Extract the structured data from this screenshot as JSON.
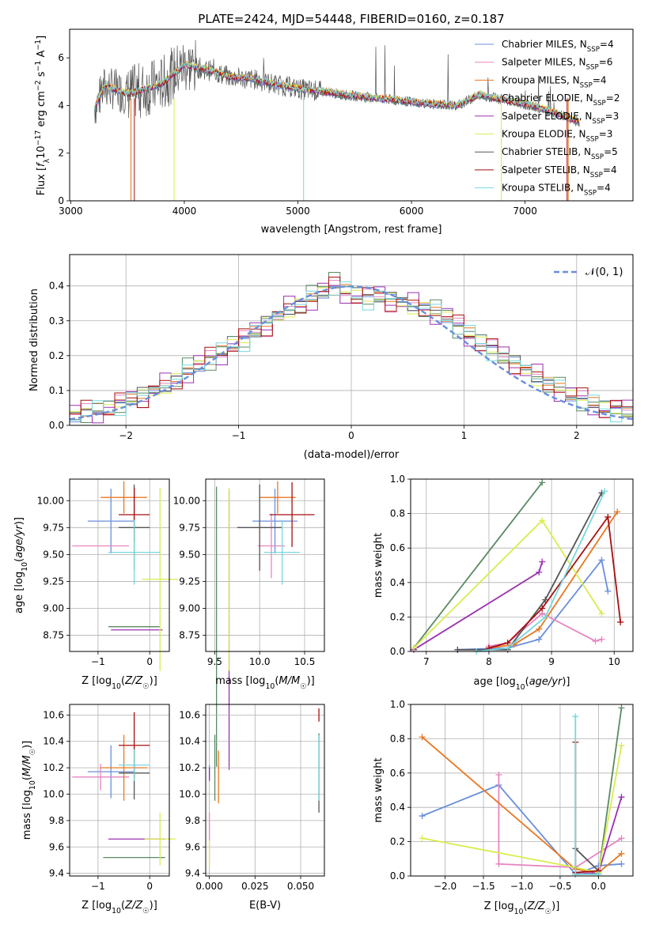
{
  "figure": {
    "title": "PLATE=2424, MJD=54448, FIBERID=0160, z=0.187"
  },
  "colors": [
    "#6a8fdc",
    "#e884c1",
    "#e87722",
    "#5a8a63",
    "#9b30b0",
    "#d9ec4c",
    "#555555",
    "#a80f0f",
    "#77d8dd"
  ],
  "chart_data": [
    {
      "name": "spectrum",
      "type": "line",
      "title": "PLATE=2424, MJD=54448, FIBERID=0160, z=0.187",
      "xlabel": "wavelength [Angstrom, rest frame]",
      "ylabel": "Flux [f_λ 10^-17 erg cm^-2 s^-1 A^-1]",
      "xlim": [
        2990,
        7950
      ],
      "ylim": [
        0,
        7.2
      ],
      "xticks": [
        "3000",
        "4000",
        "5000",
        "6000",
        "7000"
      ],
      "yticks": [
        "0",
        "2",
        "4",
        "6"
      ],
      "grid": false,
      "legend_position": "top-right",
      "data_x_range": [
        3210,
        7480
      ],
      "continuum": {
        "x": [
          3210,
          3300,
          3500,
          3600,
          3800,
          4000,
          4200,
          4400,
          4600,
          4800,
          5000,
          5200,
          5400,
          5600,
          5800,
          6000,
          6200,
          6400,
          6600,
          6800,
          7000,
          7200,
          7480
        ],
        "y": [
          3.9,
          4.8,
          4.5,
          4.6,
          4.9,
          5.7,
          5.5,
          5.2,
          5.1,
          4.9,
          4.7,
          4.6,
          4.45,
          4.35,
          4.25,
          4.15,
          4.05,
          4.0,
          4.45,
          4.25,
          4.05,
          3.8,
          3.3
        ]
      },
      "series": [
        {
          "name": "Chabrier MILES, N_SSP=4",
          "sup": "",
          "sub": "SSP",
          "label": "Chabrier MILES, N",
          "tail": "=4"
        },
        {
          "name": "Salpeter MILES, N_SSP=6",
          "label": "Salpeter MILES, N",
          "tail": "=6"
        },
        {
          "name": "Kroupa MILES, N_SSP=4",
          "label": "Kroupa MILES, N",
          "tail": "=4"
        },
        {
          "name": "Chabrier ELODIE, N_SSP=2",
          "label": "Chabrier ELODIE, N",
          "tail": "=2"
        },
        {
          "name": "Salpeter ELODIE, N_SSP=3",
          "label": "Salpeter ELODIE, N",
          "tail": "=3"
        },
        {
          "name": "Kroupa ELODIE, N_SSP=3",
          "label": "Kroupa ELODIE, N",
          "tail": "=3"
        },
        {
          "name": "Chabrier STELIB, N_SSP=5",
          "label": "Chabrier STELIB, N",
          "tail": "=5"
        },
        {
          "name": "Salpeter STELIB, N_SSP=4",
          "label": "Salpeter STELIB, N",
          "tail": "=4"
        },
        {
          "name": "Kroupa STELIB, N_SSP=4",
          "label": "Kroupa STELIB, N",
          "tail": "=4"
        }
      ]
    },
    {
      "name": "residual-histogram",
      "type": "histogram",
      "xlabel": "(data-model)/error",
      "ylabel": "Normed distribution",
      "xlim": [
        -2.5,
        2.5
      ],
      "ylim": [
        0,
        0.49
      ],
      "xticks": [
        "−2",
        "−1",
        "0",
        "1",
        "2"
      ],
      "yticks": [
        "0.0",
        "0.1",
        "0.2",
        "0.3",
        "0.4"
      ],
      "grid": true,
      "legend_position": "top-right",
      "legend_label": "𝒩(0, 1)",
      "bin_width": 0.1,
      "bin_start": -2.5,
      "base_values": [
        0.03,
        0.04,
        0.045,
        0.05,
        0.06,
        0.075,
        0.085,
        0.1,
        0.115,
        0.13,
        0.155,
        0.175,
        0.19,
        0.21,
        0.235,
        0.245,
        0.27,
        0.29,
        0.315,
        0.335,
        0.345,
        0.365,
        0.385,
        0.39,
        0.385,
        0.375,
        0.365,
        0.37,
        0.36,
        0.355,
        0.345,
        0.335,
        0.325,
        0.315,
        0.28,
        0.26,
        0.24,
        0.22,
        0.195,
        0.18,
        0.16,
        0.14,
        0.12,
        0.105,
        0.09,
        0.07,
        0.06,
        0.05,
        0.045,
        0.04
      ],
      "peak_values": [
        0.03,
        0.04,
        0.045,
        0.05,
        0.06,
        0.075,
        0.085,
        0.1,
        0.115,
        0.13,
        0.155,
        0.175,
        0.19,
        0.21,
        0.235,
        0.245,
        0.27,
        0.29,
        0.315,
        0.335,
        0.345,
        0.365,
        0.385,
        0.47,
        0.385,
        0.375,
        0.365,
        0.37,
        0.36,
        0.355,
        0.345,
        0.335,
        0.325,
        0.315,
        0.28,
        0.26,
        0.24,
        0.22,
        0.195,
        0.18,
        0.16,
        0.14,
        0.12,
        0.105,
        0.09,
        0.07,
        0.06,
        0.05,
        0.045,
        0.04
      ]
    },
    {
      "name": "age-vs-Z",
      "type": "errorbar",
      "xlabel": "Z [log10(Z/Z☉)]",
      "ylabel": "age [log10(age/yr)]",
      "xlim": [
        -1.55,
        0.38
      ],
      "ylim": [
        8.6,
        10.2
      ],
      "xticks": [
        "−1",
        "0"
      ],
      "yticks": [
        "8.75",
        "9.00",
        "9.25",
        "9.50",
        "9.75",
        "10.00"
      ],
      "grid": true,
      "points": [
        {
          "x": -0.75,
          "xerr": 0.45,
          "y": 9.81,
          "yerr": 0.3
        },
        {
          "x": -0.95,
          "xerr": 0.55,
          "y": 9.58,
          "yerr": 0.0
        },
        {
          "x": -0.5,
          "xerr": 0.45,
          "y": 10.03,
          "yerr": 0.15
        },
        {
          "x": -0.3,
          "xerr": 0.5,
          "y": 8.83,
          "yerr": 0.0
        },
        {
          "x": -0.25,
          "xerr": 0.5,
          "y": 8.8,
          "yerr": 0.0
        },
        {
          "x": 0.2,
          "xerr": 0.35,
          "y": 9.27,
          "yerr": 0.85
        },
        {
          "x": -0.3,
          "xerr": 0.3,
          "y": 9.75,
          "yerr": 0.4
        },
        {
          "x": -0.3,
          "xerr": 0.3,
          "y": 9.87,
          "yerr": 0.25
        },
        {
          "x": -0.3,
          "xerr": 0.5,
          "y": 9.52,
          "yerr": 0.3
        }
      ]
    },
    {
      "name": "age-vs-mass",
      "type": "errorbar",
      "xlabel": "mass [log10(M/M☉)]",
      "ylabel": "",
      "xlim": [
        9.4,
        10.72
      ],
      "ylim": [
        8.6,
        10.2
      ],
      "xticks": [
        "9.5",
        "10.0",
        "10.5"
      ],
      "yticks": [
        "8.75",
        "9.00",
        "9.25",
        "9.50",
        "9.75",
        "10.00"
      ],
      "grid": true,
      "points": [
        {
          "x": 10.17,
          "xerr": 0.25,
          "y": 9.81,
          "yerr": 0.3
        },
        {
          "x": 10.13,
          "xerr": 0.15,
          "y": 9.58,
          "yerr": 0.3
        },
        {
          "x": 10.2,
          "xerr": 0.2,
          "y": 10.03,
          "yerr": 0.15
        },
        {
          "x": 9.52,
          "xerr": 0.0,
          "y": 8.83,
          "yerr": 1.3
        },
        {
          "x": 9.66,
          "xerr": 0.0,
          "y": 8.8,
          "yerr": 1.3
        },
        {
          "x": 9.66,
          "xerr": 0.0,
          "y": 9.27,
          "yerr": 0.85
        },
        {
          "x": 10.0,
          "xerr": 0.25,
          "y": 9.75,
          "yerr": 0.4
        },
        {
          "x": 10.36,
          "xerr": 0.25,
          "y": 9.87,
          "yerr": 0.3
        },
        {
          "x": 10.25,
          "xerr": 0.2,
          "y": 9.52,
          "yerr": 0.3
        }
      ]
    },
    {
      "name": "mass-weight-vs-age",
      "type": "line",
      "xlabel": "age [log10(age/yr)]",
      "ylabel": "mass weight",
      "xlim": [
        6.75,
        10.3
      ],
      "ylim": [
        0,
        1.0
      ],
      "xticks": [
        "7",
        "8",
        "9",
        "10"
      ],
      "yticks": [
        "0.0",
        "0.2",
        "0.4",
        "0.6",
        "0.8",
        "1.0"
      ],
      "grid": true,
      "series": [
        {
          "x": [
            7.5,
            8.3,
            8.8,
            9.8,
            9.9
          ],
          "y": [
            0.01,
            0.02,
            0.07,
            0.53,
            0.35
          ]
        },
        {
          "x": [
            8.0,
            8.3,
            8.85,
            9.7,
            9.8
          ],
          "y": [
            0.03,
            0.05,
            0.22,
            0.06,
            0.07
          ]
        },
        {
          "x": [
            8.0,
            8.4,
            8.8,
            10.05
          ],
          "y": [
            0.02,
            0.04,
            0.13,
            0.81
          ]
        },
        {
          "x": [
            6.8,
            8.85
          ],
          "y": [
            0.02,
            0.98
          ]
        },
        {
          "x": [
            6.8,
            8.8,
            8.85
          ],
          "y": [
            0.01,
            0.46,
            0.52
          ]
        },
        {
          "x": [
            6.8,
            8.85,
            9.8
          ],
          "y": [
            0.02,
            0.76,
            0.22
          ]
        },
        {
          "x": [
            7.5,
            8.3,
            8.9,
            9.8
          ],
          "y": [
            0.01,
            0.01,
            0.3,
            0.92
          ]
        },
        {
          "x": [
            8.0,
            8.3,
            8.85,
            9.9,
            10.1
          ],
          "y": [
            0.02,
            0.05,
            0.25,
            0.78,
            0.17
          ]
        },
        {
          "x": [
            7.8,
            8.3,
            8.9,
            9.85
          ],
          "y": [
            0.0,
            0.02,
            0.2,
            0.93
          ]
        }
      ]
    },
    {
      "name": "mass-vs-Z",
      "type": "errorbar",
      "xlabel": "Z [log10(Z/Z☉)]",
      "ylabel": "mass [log10(M/M☉)]",
      "xlim": [
        -1.55,
        0.38
      ],
      "ylim": [
        9.38,
        10.68
      ],
      "xticks": [
        "−1",
        "0"
      ],
      "yticks": [
        "9.4",
        "9.6",
        "9.8",
        "10.0",
        "10.2",
        "10.4",
        "10.6"
      ],
      "grid": true,
      "points": [
        {
          "x": -0.75,
          "xerr": 0.45,
          "y": 10.17,
          "yerr": 0.2
        },
        {
          "x": -0.95,
          "xerr": 0.55,
          "y": 10.13,
          "yerr": 0.1
        },
        {
          "x": -0.5,
          "xerr": 0.45,
          "y": 10.2,
          "yerr": 0.25
        },
        {
          "x": -0.3,
          "xerr": 0.6,
          "y": 9.52,
          "yerr": 0.0
        },
        {
          "x": -0.25,
          "xerr": 0.55,
          "y": 9.66,
          "yerr": 0.0
        },
        {
          "x": 0.2,
          "xerr": 0.3,
          "y": 9.66,
          "yerr": 0.2
        },
        {
          "x": -0.3,
          "xerr": 0.3,
          "y": 10.16,
          "yerr": 0.2
        },
        {
          "x": -0.3,
          "xerr": 0.3,
          "y": 10.37,
          "yerr": 0.25
        },
        {
          "x": -0.3,
          "xerr": 0.3,
          "y": 10.22,
          "yerr": 0.12
        }
      ]
    },
    {
      "name": "mass-vs-ebv",
      "type": "errorbar",
      "xlabel": "E(B-V)",
      "ylabel": "",
      "xlim": [
        -0.002,
        0.063
      ],
      "ylim": [
        9.38,
        10.68
      ],
      "xticks": [
        "0.000",
        "0.025",
        "0.050"
      ],
      "yticks": [
        "9.4",
        "9.6",
        "9.8",
        "10.0",
        "10.2",
        "10.4",
        "10.6"
      ],
      "grid": true,
      "points": [
        {
          "x": 0.0,
          "y": 10.17,
          "yerr": 0.05
        },
        {
          "x": 0.0,
          "y": 9.66,
          "yerr": 0.2
        },
        {
          "x": 0.005,
          "y": 10.13,
          "yerr": 0.2
        },
        {
          "x": 0.003,
          "y": 10.2,
          "yerr": 0.25
        },
        {
          "x": 0.0,
          "y": 10.15,
          "yerr": 0.05
        },
        {
          "x": 0.0,
          "y": 9.55,
          "yerr": 0.1
        },
        {
          "x": 0.06,
          "y": 10.16,
          "yerr": 0.3
        },
        {
          "x": 0.06,
          "y": 10.6,
          "yerr": 0.05
        },
        {
          "x": 0.06,
          "y": 10.2,
          "yerr": 0.25
        }
      ]
    },
    {
      "name": "mass-weight-vs-Z",
      "type": "line",
      "xlabel": "Z [log10(Z/Z☉)]",
      "ylabel": "mass weight",
      "xlim": [
        -2.45,
        0.45
      ],
      "ylim": [
        0,
        1.0
      ],
      "xticks": [
        "−2.0",
        "−1.5",
        "−1.0",
        "−0.5",
        "0.0"
      ],
      "yticks": [
        "0.0",
        "0.2",
        "0.4",
        "0.6",
        "0.8",
        "1.0"
      ],
      "grid": true,
      "series": [
        {
          "x": [
            -2.3,
            -1.3,
            -0.3,
            0.0,
            0.3
          ],
          "y": [
            0.35,
            0.53,
            0.01,
            0.06,
            0.07
          ]
        },
        {
          "x": [
            -1.3,
            -1.3,
            -0.3,
            0.3
          ],
          "y": [
            0.59,
            0.07,
            0.05,
            0.22
          ]
        },
        {
          "x": [
            -2.3,
            -0.3,
            0.0,
            0.3
          ],
          "y": [
            0.81,
            0.04,
            0.02,
            0.13
          ]
        },
        {
          "x": [
            -0.3,
            0.0,
            0.3
          ],
          "y": [
            0.01,
            0.01,
            0.98
          ]
        },
        {
          "x": [
            -0.3,
            0.0,
            0.3
          ],
          "y": [
            0.01,
            0.02,
            0.46
          ]
        },
        {
          "x": [
            -2.3,
            -0.3,
            0.0,
            0.3
          ],
          "y": [
            0.22,
            0.05,
            0.02,
            0.76
          ]
        },
        {
          "x": [
            -0.3,
            0.0
          ],
          "y": [
            0.16,
            0.03
          ]
        },
        {
          "x": [
            -0.3,
            -0.3,
            0.0
          ],
          "y": [
            0.78,
            0.02,
            0.03
          ]
        },
        {
          "x": [
            -0.3,
            -0.3,
            0.0
          ],
          "y": [
            0.93,
            0.01,
            0.01
          ]
        }
      ]
    }
  ]
}
